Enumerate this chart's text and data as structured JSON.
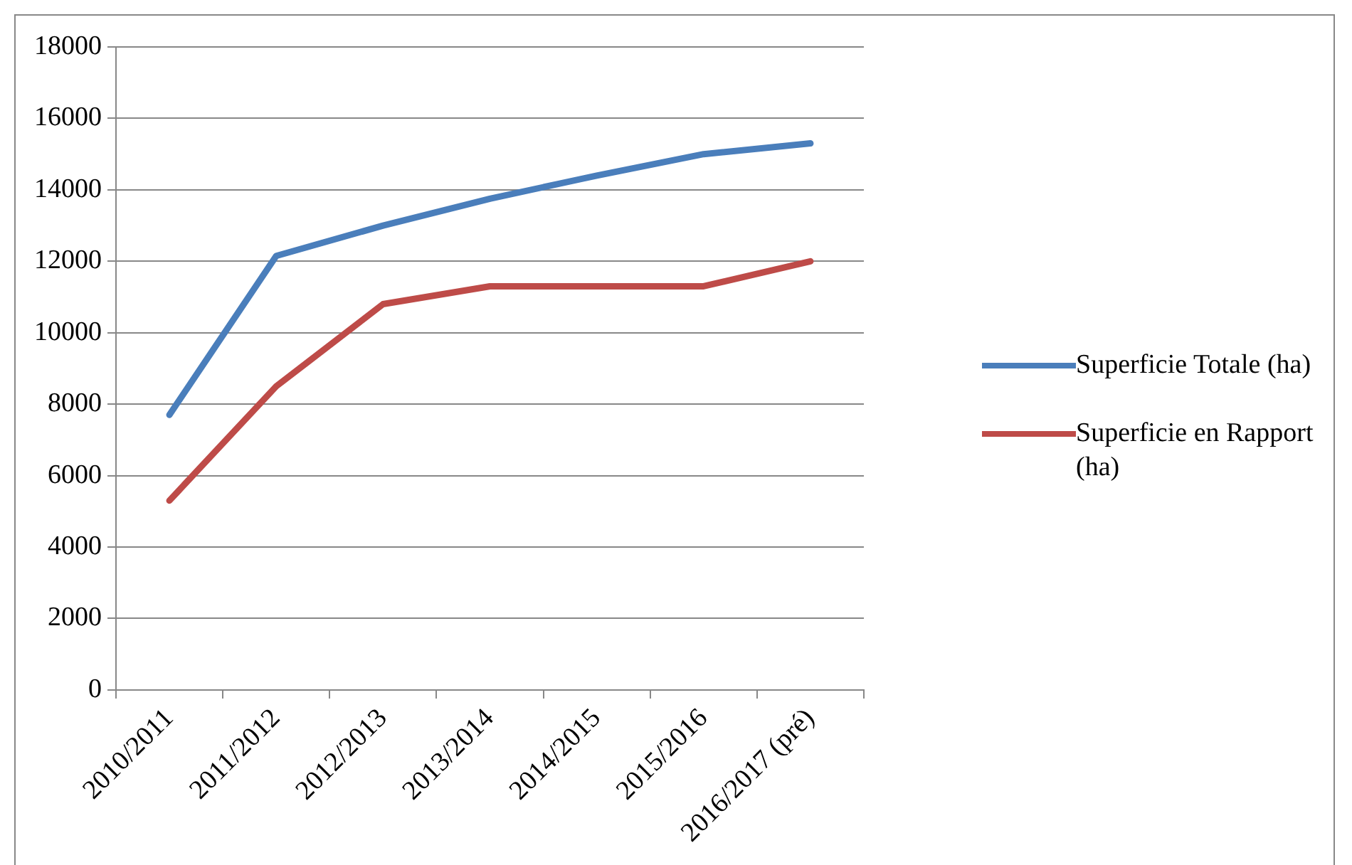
{
  "chart_data": {
    "type": "line",
    "categories": [
      "2010/2011",
      "2011/2012",
      "2012/2013",
      "2013/2014",
      "2014/2015",
      "2015/2016",
      "2016/2017 (pré)"
    ],
    "series": [
      {
        "name": "Superficie Totale (ha)",
        "color": "#4a7ebb",
        "values": [
          7700,
          12150,
          13000,
          13750,
          14400,
          15000,
          15300
        ]
      },
      {
        "name": "Superficie en Rapport (ha)",
        "color": "#be4b48",
        "values": [
          5300,
          8500,
          10800,
          11300,
          11300,
          11300,
          12000
        ]
      }
    ],
    "ylim": [
      0,
      18000
    ],
    "yticks": [
      0,
      2000,
      4000,
      6000,
      8000,
      10000,
      12000,
      14000,
      16000,
      18000
    ],
    "grid": "y",
    "legend": "right",
    "marker": "none",
    "line_style": "solid"
  }
}
